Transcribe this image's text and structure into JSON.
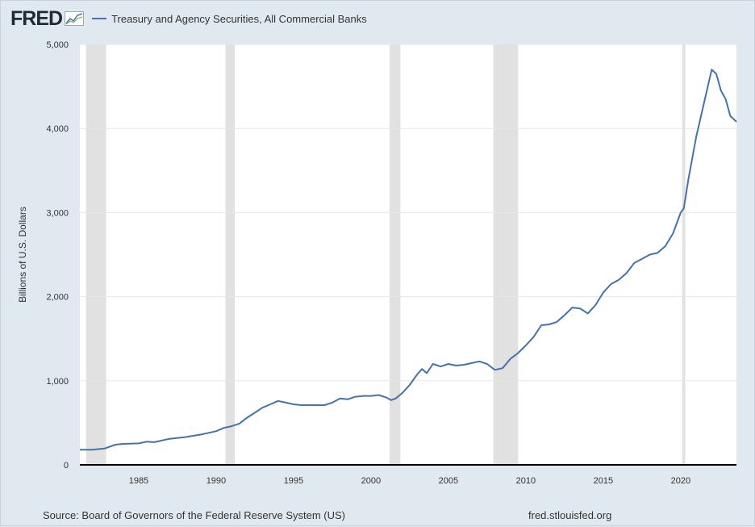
{
  "header": {
    "logo_text": "FRED",
    "legend_label": "Treasury and Agency Securities, All Commercial Banks"
  },
  "footer": {
    "source": "Source: Board of Governors of the Federal Reserve System (US)",
    "url": "fred.stlouisfed.org"
  },
  "colors": {
    "background": "#e1e9f0",
    "plot_background": "#ffffff",
    "series": "#4572a7",
    "recession": "#e1e1e1",
    "gridline": "#e6e6e6"
  },
  "chart_data": {
    "type": "line",
    "title": "",
    "xlabel": "",
    "ylabel": "Billions of U.S. Dollars",
    "xlim": [
      1981.2,
      2023.6
    ],
    "ylim": [
      0,
      5000
    ],
    "x_ticks": [
      "1985",
      "1990",
      "1995",
      "2000",
      "2005",
      "2010",
      "2015",
      "2020"
    ],
    "y_ticks": [
      "0",
      "1,000",
      "2,000",
      "3,000",
      "4,000",
      "5,000"
    ],
    "grid": true,
    "legend": "top-left",
    "recessions": [
      [
        1981.6,
        1982.9
      ],
      [
        1990.6,
        1991.2
      ],
      [
        2001.2,
        2001.9
      ],
      [
        2007.9,
        2009.5
      ],
      [
        2020.1,
        2020.3
      ]
    ],
    "series": [
      {
        "name": "Treasury and Agency Securities, All Commercial Banks",
        "x": [
          1981.2,
          1982.0,
          1982.8,
          1983.5,
          1984.0,
          1985.0,
          1985.5,
          1986.0,
          1987.0,
          1988.0,
          1989.0,
          1990.0,
          1990.5,
          1991.0,
          1991.5,
          1992.0,
          1992.5,
          1993.0,
          1993.5,
          1994.0,
          1994.5,
          1995.0,
          1995.5,
          1996.0,
          1997.0,
          1997.5,
          1998.0,
          1998.5,
          1999.0,
          1999.5,
          2000.0,
          2000.5,
          2001.0,
          2001.3,
          2001.6,
          2002.0,
          2002.5,
          2003.0,
          2003.3,
          2003.6,
          2004.0,
          2004.5,
          2005.0,
          2005.5,
          2006.0,
          2006.5,
          2007.0,
          2007.5,
          2008.0,
          2008.5,
          2009.0,
          2009.5,
          2010.0,
          2010.5,
          2011.0,
          2011.5,
          2012.0,
          2012.5,
          2013.0,
          2013.5,
          2014.0,
          2014.5,
          2015.0,
          2015.5,
          2016.0,
          2016.5,
          2017.0,
          2017.5,
          2018.0,
          2018.5,
          2019.0,
          2019.5,
          2020.0,
          2020.2,
          2020.5,
          2021.0,
          2021.5,
          2022.0,
          2022.3,
          2022.6,
          2022.9,
          2023.2,
          2023.6
        ],
        "values": [
          180,
          180,
          195,
          240,
          250,
          255,
          275,
          270,
          310,
          330,
          360,
          400,
          440,
          460,
          490,
          560,
          620,
          680,
          720,
          760,
          740,
          720,
          710,
          710,
          710,
          740,
          790,
          780,
          810,
          820,
          820,
          830,
          800,
          770,
          790,
          850,
          950,
          1080,
          1140,
          1090,
          1200,
          1170,
          1200,
          1180,
          1190,
          1210,
          1230,
          1200,
          1130,
          1150,
          1260,
          1330,
          1420,
          1520,
          1660,
          1670,
          1700,
          1780,
          1870,
          1860,
          1800,
          1900,
          2050,
          2150,
          2200,
          2280,
          2400,
          2450,
          2500,
          2520,
          2600,
          2750,
          3000,
          3050,
          3400,
          3900,
          4300,
          4700,
          4650,
          4450,
          4350,
          4150,
          4080
        ]
      }
    ]
  }
}
